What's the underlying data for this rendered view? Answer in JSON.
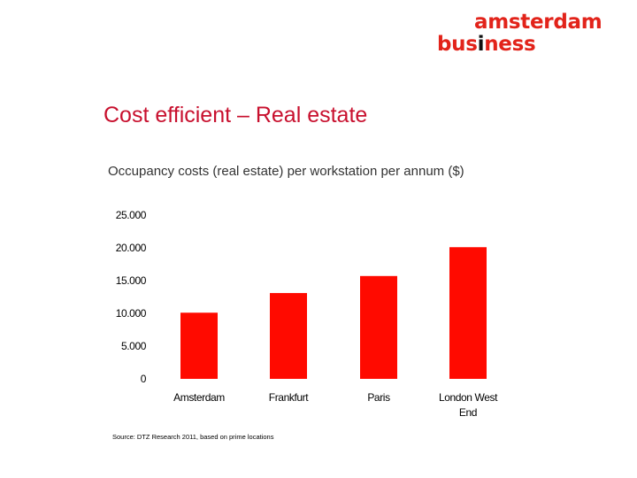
{
  "logo": {
    "line1": "amsterdam",
    "line2_before": "bus",
    "line2_mid": "i",
    "line2_after": "ness",
    "colors": {
      "primary": "#e2231a",
      "dark": "#111111"
    }
  },
  "slide": {
    "title": "Cost efficient – Real estate",
    "subtitle": "Occupancy costs (real estate) per workstation per annum ($)",
    "source": "Source: DTZ Research 2011, based on prime locations"
  },
  "chart_data": {
    "type": "bar",
    "title": "",
    "xlabel": "",
    "ylabel": "",
    "categories": [
      [
        "Amsterdam"
      ],
      [
        "Frankfurt"
      ],
      [
        "Paris"
      ],
      [
        "London West",
        "End"
      ]
    ],
    "values": [
      10100,
      13100,
      15700,
      20100
    ],
    "ylim": [
      0,
      25000
    ],
    "yticks": [
      0,
      5000,
      10000,
      15000,
      20000,
      25000
    ],
    "ytick_labels": [
      "0",
      "5.000",
      "10.000",
      "15.000",
      "20.000",
      "25.000"
    ],
    "bar_color": "#ff0a00",
    "grid": false,
    "legend": "none"
  }
}
